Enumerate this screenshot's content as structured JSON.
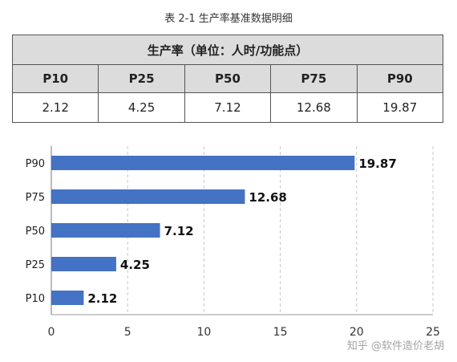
{
  "caption": "表 2-1 生产率基准数据明细",
  "table": {
    "header": "生产率（单位：人时/功能点）",
    "columns": [
      "P10",
      "P25",
      "P50",
      "P75",
      "P90"
    ],
    "values": [
      "2.12",
      "4.25",
      "7.12",
      "12.68",
      "19.87"
    ]
  },
  "chart_data": {
    "type": "bar",
    "orientation": "horizontal",
    "categories": [
      "P90",
      "P75",
      "P50",
      "P25",
      "P10"
    ],
    "values": [
      19.87,
      12.68,
      7.12,
      4.25,
      2.12
    ],
    "data_labels": [
      "19.87",
      "12.68",
      "7.12",
      "4.25",
      "2.12"
    ],
    "xlim": [
      0,
      25
    ],
    "xticks": [
      "0",
      "5",
      "10",
      "15",
      "20",
      "25"
    ],
    "grid": "vertical dashed",
    "bar_color": "#4472c4",
    "title": "",
    "xlabel": "",
    "ylabel": ""
  },
  "watermark": "知乎 @软件造价老胡"
}
